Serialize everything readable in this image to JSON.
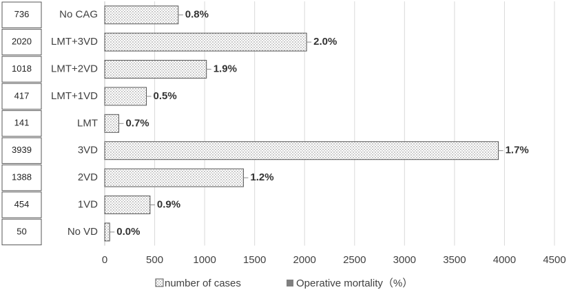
{
  "chart_data": {
    "type": "bar",
    "orientation": "horizontal",
    "categories": [
      "No CAG",
      "LMT+3VD",
      "LMT+2VD",
      "LMT+1VD",
      "LMT",
      "3VD",
      "2VD",
      "1VD",
      "No VD"
    ],
    "series": [
      {
        "name": "number of cases",
        "color": "#555555",
        "values": [
          736,
          2020,
          1018,
          417,
          141,
          3939,
          1388,
          454,
          50
        ]
      },
      {
        "name": "Operative mortality（%）",
        "color": "#7f7f7f",
        "values": [
          0.8,
          2.0,
          1.9,
          0.5,
          0.7,
          1.7,
          1.2,
          0.9,
          0.0
        ],
        "value_labels": [
          "0.8%",
          "2.0%",
          "1.9%",
          "0.5%",
          "0.7%",
          "1.7%",
          "1.2%",
          "0.9%",
          "0.0%"
        ]
      }
    ],
    "xlim": [
      0,
      4500
    ],
    "xticks": [
      0,
      500,
      1000,
      1500,
      2000,
      2500,
      3000,
      3500,
      4000,
      4500
    ],
    "grid": true,
    "legend": "bottom"
  }
}
